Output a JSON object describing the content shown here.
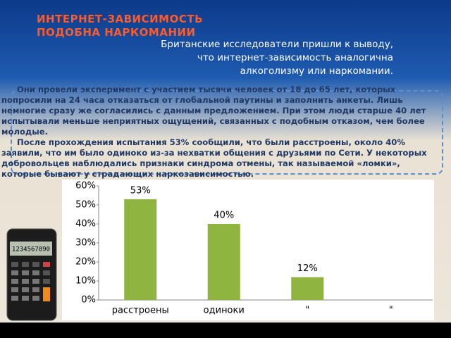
{
  "slide": {
    "title": "ИНТЕРНЕТ-ЗАВИСИМОСТЬ ПОДОБНА НАРКОМАНИИ",
    "subtitle": "Британские исследователи пришли к выводу, что интернет-зависимость аналогична алкоголизму или наркомании.",
    "paragraphs": [
      "Они провели эксперимент с участием тысячи человек от 18 до 65 лет, которых попросили на 24 часа отказаться от глобальной паутины и заполнить анкеты. Лишь немногие сразу же согласились с данным предложением. При этом люди старше 40 лет испытывали меньше неприятных ощущений, связанных с подобным отказом, чем более молодые.",
      "После прохождения испытания 53% сообщили, что были расстроены, около 40% заявили, что им было одиноко из-за нехватки общения с друзьями по Сети. У некоторых добровольцев наблюдались признаки синдрома отмены, так называемой «ломки», которые бывают у страдающих наркозависимостью."
    ],
    "calculator_display": "1234567890"
  },
  "chart_data": {
    "type": "bar",
    "categories": [
      "расстроены",
      "одиноки",
      "\"",
      "\""
    ],
    "values": [
      53,
      40,
      12,
      null
    ],
    "value_labels": [
      "53%",
      "40%",
      "12%",
      null
    ],
    "color": "#8fb43f",
    "ylim": [
      0,
      60
    ],
    "yticks": [
      {
        "value": 0,
        "label": "0%"
      },
      {
        "value": 10,
        "label": "10%"
      },
      {
        "value": 20,
        "label": "20%"
      },
      {
        "value": 30,
        "label": "30%"
      },
      {
        "value": 40,
        "label": "40%"
      },
      {
        "value": 50,
        "label": "50%"
      },
      {
        "value": 60,
        "label": "60%"
      }
    ],
    "grid": false
  }
}
